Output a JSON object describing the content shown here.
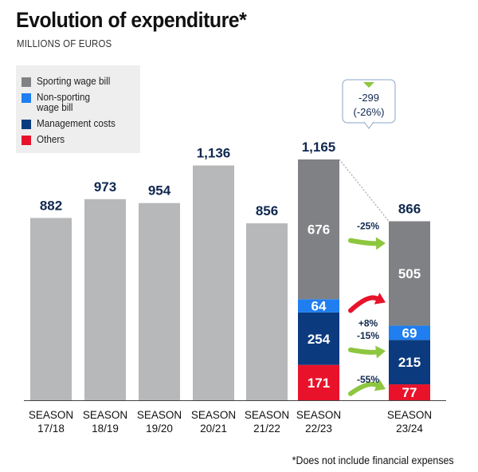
{
  "header": {
    "title": "Evolution of expenditure*",
    "subtitle": "MILLIONS OF EUROS"
  },
  "footnote": "*Does not include financial expenses",
  "colors": {
    "sporting": "#808184",
    "non_sporting": "#1f7ef0",
    "management": "#0b3a7e",
    "others": "#e8132b",
    "past_bars": "#b7b8ba",
    "arrow": "#8dc63f",
    "arrow_up": "#e8132b",
    "total_text": "#10284f"
  },
  "legend": {
    "items": [
      {
        "label": "Sporting wage bill",
        "color": "#808184"
      },
      {
        "label": "Non-sporting\nwage bill",
        "color": "#1f7ef0"
      },
      {
        "label": "Management costs",
        "color": "#0b3a7e"
      },
      {
        "label": "Others",
        "color": "#e8132b"
      }
    ]
  },
  "callout": {
    "line1": "-299",
    "line2": "(-26%)"
  },
  "chart_data": {
    "type": "bar",
    "title": "Evolution of expenditure*",
    "subtitle": "MILLIONS OF EUROS",
    "categories": [
      "SEASON\n17/18",
      "SEASON\n18/19",
      "SEASON\n19/20",
      "SEASON\n20/21",
      "SEASON\n21/22",
      "SEASON\n22/23",
      "SEASON\n23/24"
    ],
    "totals": [
      "882",
      "973",
      "954",
      "1,136",
      "856",
      "1,165",
      "866"
    ],
    "total_values": [
      882,
      973,
      954,
      1136,
      856,
      1165,
      866
    ],
    "stacked": {
      "SEASON 22/23": {
        "Sporting wage bill": 676,
        "Non-sporting wage bill": 64,
        "Management costs": 254,
        "Others": 171
      },
      "SEASON 23/24": {
        "Sporting wage bill": 505,
        "Non-sporting wage bill": 69,
        "Management costs": 215,
        "Others": 77
      }
    },
    "series": [
      {
        "name": "Sporting wage bill",
        "values": [
          null,
          null,
          null,
          null,
          null,
          676,
          505
        ]
      },
      {
        "name": "Non-sporting wage bill",
        "values": [
          null,
          null,
          null,
          null,
          null,
          64,
          69
        ]
      },
      {
        "name": "Management costs",
        "values": [
          null,
          null,
          null,
          null,
          null,
          254,
          215
        ]
      },
      {
        "name": "Others",
        "values": [
          null,
          null,
          null,
          null,
          null,
          171,
          77
        ]
      }
    ],
    "changes": [
      {
        "label": "-25%",
        "direction": "down"
      },
      {
        "label": "+8%",
        "direction": "up"
      },
      {
        "label": "-15%",
        "direction": "down"
      },
      {
        "label": "-55%",
        "direction": "down"
      }
    ],
    "ylim": [
      0,
      1200
    ]
  }
}
